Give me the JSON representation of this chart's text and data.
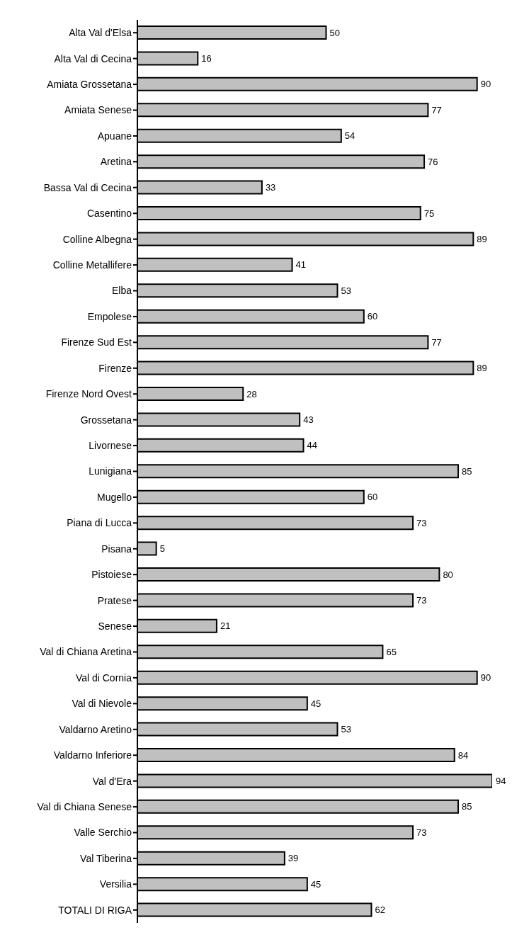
{
  "chart_data": {
    "type": "bar",
    "orientation": "horizontal",
    "categories": [
      "Alta Val d'Elsa",
      "Alta Val di Cecina",
      "Amiata Grossetana",
      "Amiata Senese",
      "Apuane",
      "Aretina",
      "Bassa Val di Cecina",
      "Casentino",
      "Colline Albegna",
      "Colline Metallifere",
      "Elba",
      "Empolese",
      "Firenze Sud Est",
      "Firenze",
      "Firenze Nord Ovest",
      "Grossetana",
      "Livornese",
      "Lunigiana",
      "Mugello",
      "Piana di Lucca",
      "Pisana",
      "Pistoiese",
      "Pratese",
      "Senese",
      "Val di Chiana Aretina",
      "Val di Cornia",
      "Val di Nievole",
      "Valdarno Aretino",
      "Valdarno Inferiore",
      "Val d'Era",
      "Val di Chiana Senese",
      "Valle Serchio",
      "Val Tiberina",
      "Versilia",
      "TOTALI DI RIGA"
    ],
    "values": [
      50,
      16,
      90,
      77,
      54,
      76,
      33,
      75,
      89,
      41,
      53,
      60,
      77,
      89,
      28,
      43,
      44,
      85,
      60,
      73,
      5,
      80,
      73,
      21,
      65,
      90,
      45,
      53,
      84,
      94,
      85,
      73,
      39,
      45,
      62
    ],
    "color": "#c0c0c0",
    "tick_labels": "y",
    "data_labels": true
  }
}
